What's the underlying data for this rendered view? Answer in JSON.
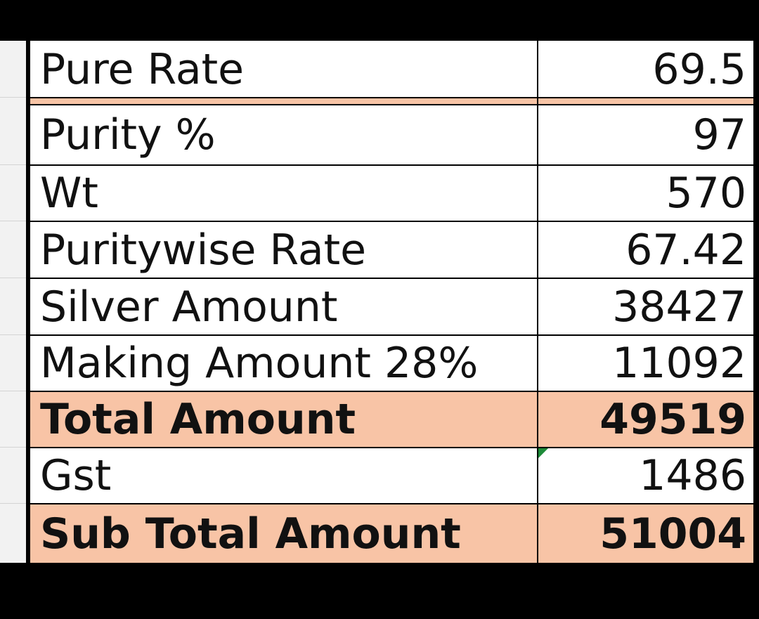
{
  "colors": {
    "background": "#000000",
    "sheet": "#ffffff",
    "highlight": "#f8c4a6",
    "grid": "#000000",
    "note_marker": "#1e8c3a"
  },
  "rows": [
    {
      "label": "Pure Rate",
      "value": "69.5",
      "bold": false,
      "highlight": false
    },
    {
      "label": "Purity %",
      "value": "97",
      "bold": false,
      "highlight": false
    },
    {
      "label": "Wt",
      "value": "570",
      "bold": false,
      "highlight": false
    },
    {
      "label": "Puritywise Rate",
      "value": "67.42",
      "bold": false,
      "highlight": false
    },
    {
      "label": "Silver Amount",
      "value": "38427",
      "bold": false,
      "highlight": false
    },
    {
      "label": "Making Amount 28%",
      "value": "11092",
      "bold": false,
      "highlight": false
    },
    {
      "label": "Total Amount",
      "value": "49519",
      "bold": true,
      "highlight": true
    },
    {
      "label": "Gst",
      "value": "1486",
      "bold": false,
      "highlight": false
    },
    {
      "label": "Sub Total Amount",
      "value": "51004",
      "bold": true,
      "highlight": true
    }
  ]
}
